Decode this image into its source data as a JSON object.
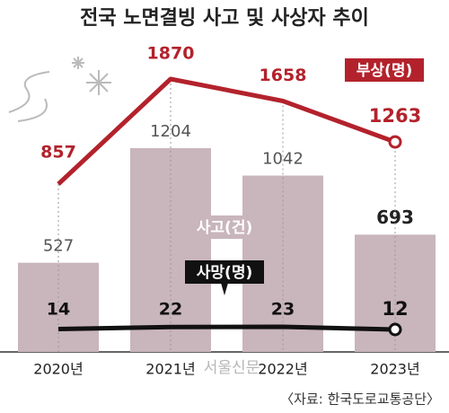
{
  "chart_data": {
    "type": "bar",
    "title": "전국 노면결빙 사고 및 사상자 추이",
    "categories": [
      "2020년",
      "2021년",
      "2022년",
      "2023년"
    ],
    "series": [
      {
        "name": "사고(건)",
        "color": "#c9b5bc",
        "values": [
          527,
          1204,
          1042,
          693
        ]
      },
      {
        "name": "부상(명)",
        "color": "#b3222c",
        "values": [
          857,
          1870,
          1658,
          1263
        ]
      },
      {
        "name": "사망(명)",
        "color": "#111111",
        "values": [
          14,
          22,
          23,
          12
        ]
      }
    ],
    "source": "〈자료: 한국도로교통공단〉",
    "watermark": "서울신문"
  }
}
